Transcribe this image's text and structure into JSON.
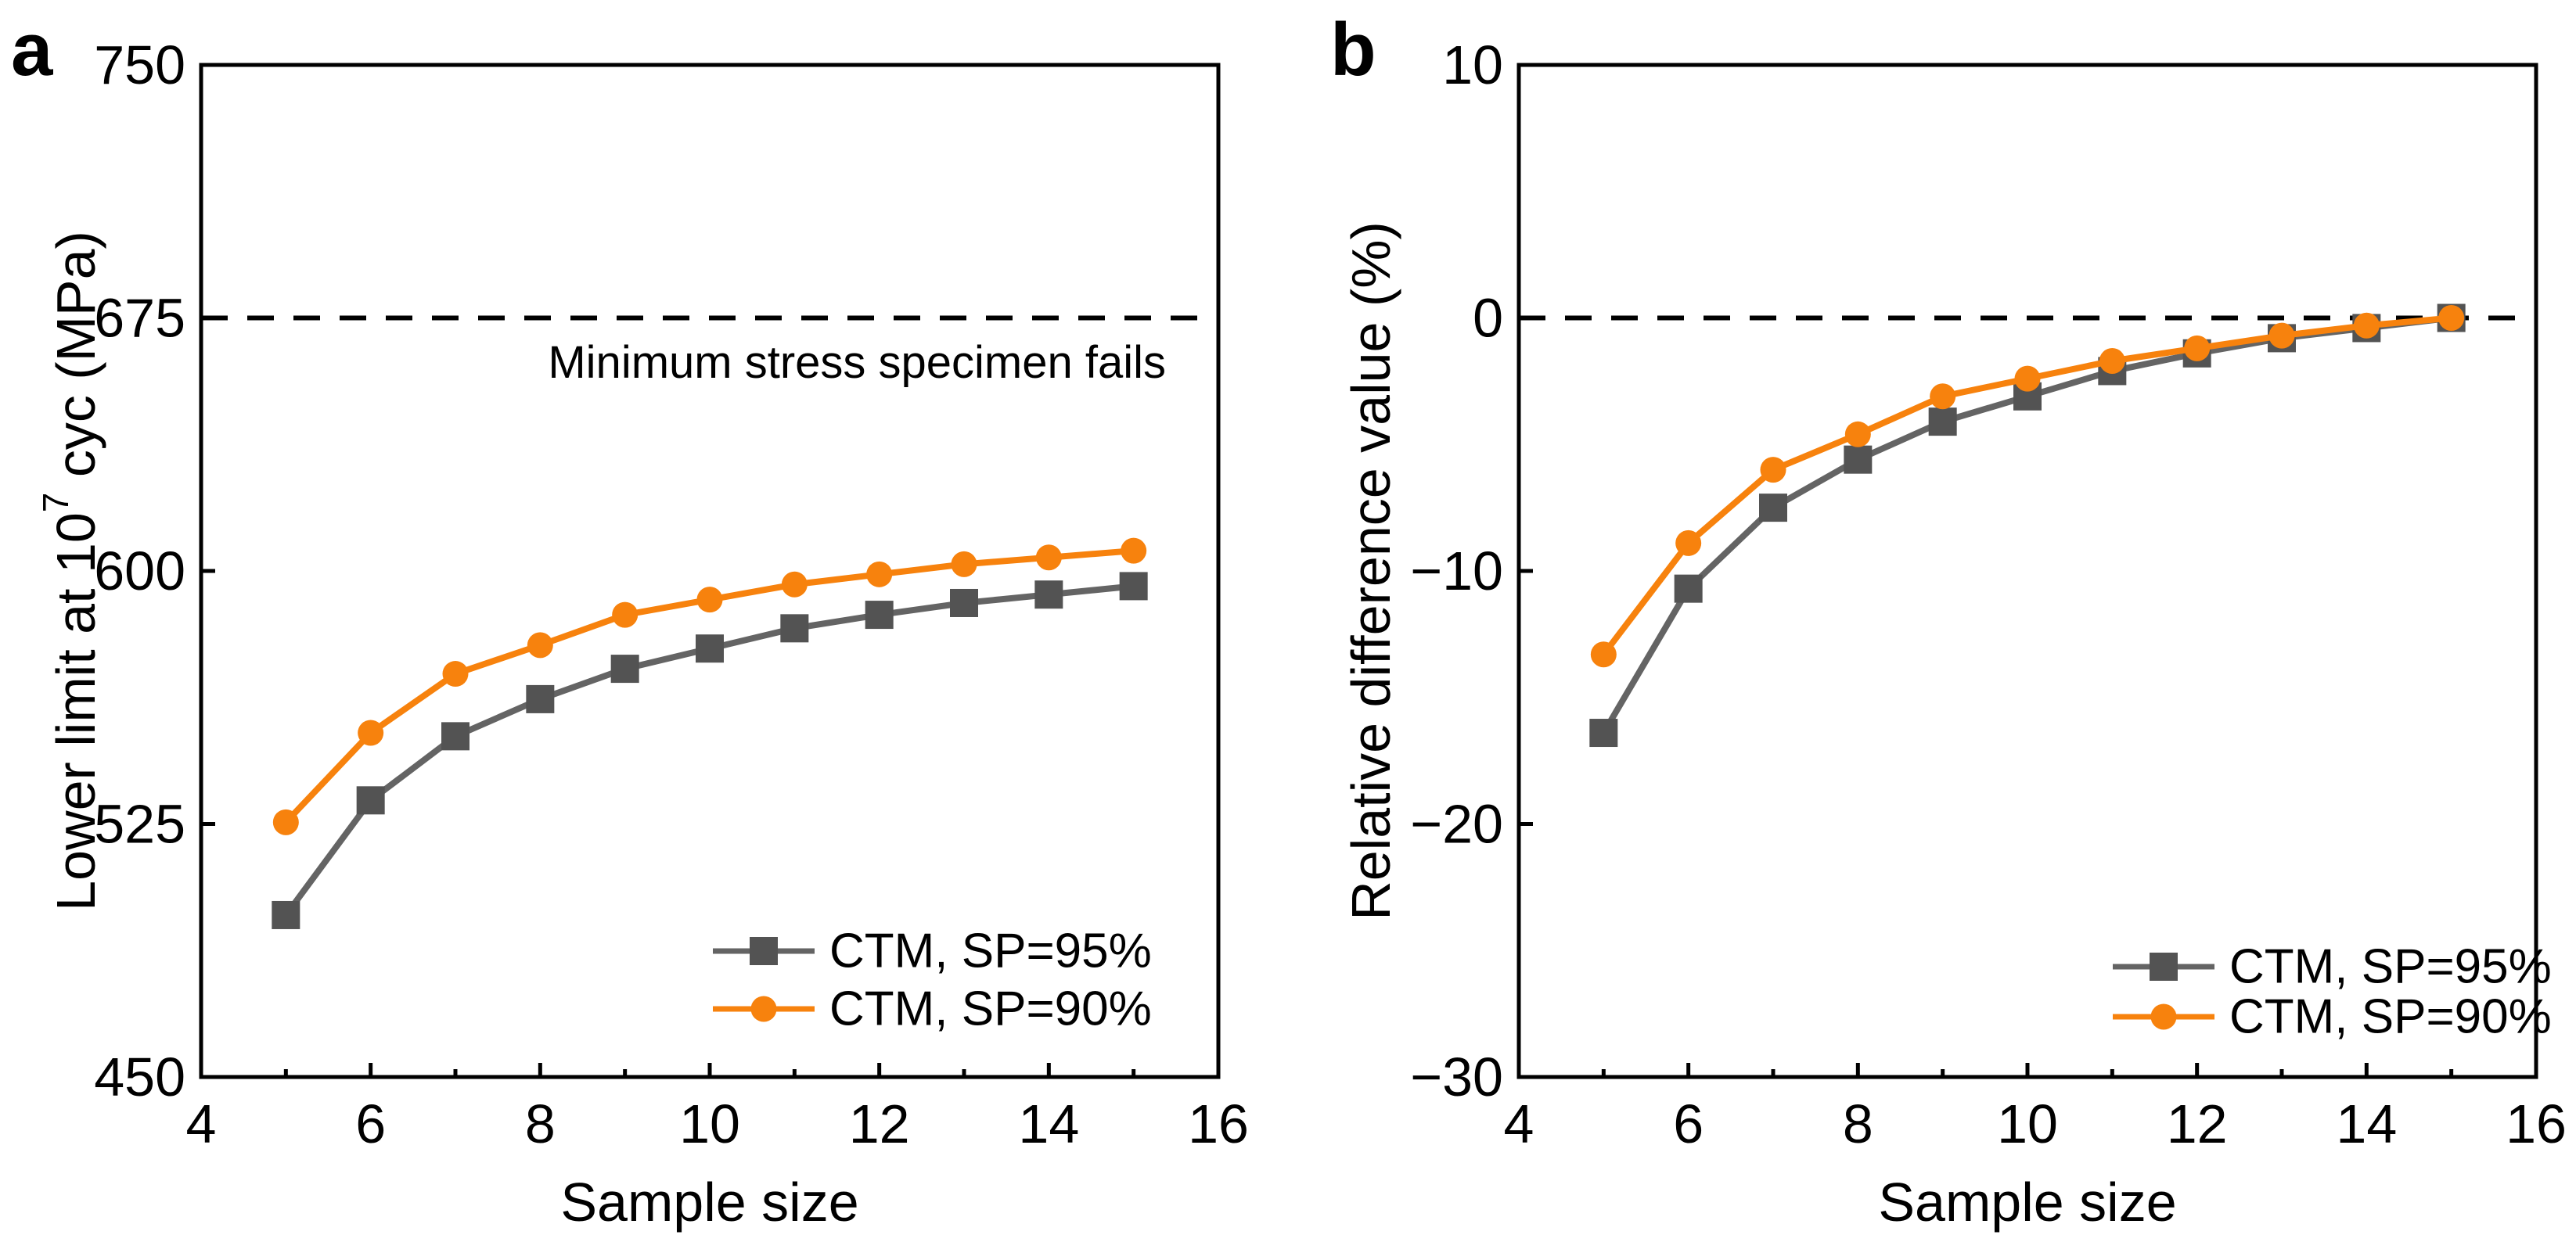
{
  "figure": {
    "background": "#FFFFFF",
    "frame_color": "#000000",
    "panel_letters": [
      "a",
      "b"
    ]
  },
  "chart_data": [
    {
      "panel_label": "a",
      "type": "line",
      "title": "",
      "xlabel": "Sample size",
      "ylabel": "Lower limit at 10^7 cyc (MPa)",
      "ylabel_parts": [
        {
          "text": "Lower limit at 10"
        },
        {
          "text": "7",
          "superscript": true
        },
        {
          "text": " cyc (MPa)"
        }
      ],
      "xlim": [
        4,
        16
      ],
      "ylim": [
        450,
        750
      ],
      "xticks": [
        4,
        6,
        8,
        10,
        12,
        14,
        16
      ],
      "xticks_minor": [
        5,
        7,
        9,
        11,
        13,
        15
      ],
      "yticks": [
        450,
        525,
        600,
        675,
        750
      ],
      "grid": false,
      "legend_position": "lower right",
      "x": [
        5,
        6,
        7,
        8,
        9,
        10,
        11,
        12,
        13,
        14,
        15
      ],
      "series": [
        {
          "name": "CTM, SP=95%",
          "marker": "square",
          "marker_color": "#535353",
          "line_color": "#646464",
          "values": [
            498,
            532,
            551,
            562,
            571,
            577,
            583,
            587,
            590.5,
            593,
            595.5
          ]
        },
        {
          "name": "CTM, SP=90%",
          "marker": "circle",
          "marker_color": "#F7820D",
          "line_color": "#F7820D",
          "values": [
            525.5,
            552,
            569.5,
            578,
            587,
            591.5,
            596,
            599,
            602,
            604,
            606
          ]
        }
      ],
      "reference_line": {
        "y": 675,
        "style": "dashed",
        "color": "#000000",
        "label": "Minimum stress specimen fails"
      }
    },
    {
      "panel_label": "b",
      "type": "line",
      "title": "",
      "xlabel": "Sample size",
      "ylabel": "Relative difference value (%)",
      "ylabel_parts": [
        {
          "text": "Relative difference value (%)"
        }
      ],
      "xlim": [
        4,
        16
      ],
      "ylim": [
        -30,
        10
      ],
      "xticks": [
        4,
        6,
        8,
        10,
        12,
        14,
        16
      ],
      "xticks_minor": [
        5,
        7,
        9,
        11,
        13,
        15
      ],
      "yticks": [
        -30,
        -20,
        -10,
        0,
        10
      ],
      "grid": false,
      "legend_position": "lower right",
      "x": [
        5,
        6,
        7,
        8,
        9,
        10,
        11,
        12,
        13,
        14,
        15
      ],
      "series": [
        {
          "name": "CTM, SP=95%",
          "marker": "square",
          "marker_color": "#535353",
          "line_color": "#646464",
          "values": [
            -16.4,
            -10.7,
            -7.5,
            -5.6,
            -4.1,
            -3.1,
            -2.1,
            -1.4,
            -0.8,
            -0.4,
            0
          ]
        },
        {
          "name": "CTM, SP=90%",
          "marker": "circle",
          "marker_color": "#F7820D",
          "line_color": "#F7820D",
          "values": [
            -13.3,
            -8.9,
            -6.0,
            -4.6,
            -3.1,
            -2.4,
            -1.7,
            -1.2,
            -0.7,
            -0.3,
            0
          ]
        }
      ],
      "reference_line": {
        "y": 0,
        "style": "dashed",
        "color": "#000000",
        "label": ""
      }
    }
  ]
}
